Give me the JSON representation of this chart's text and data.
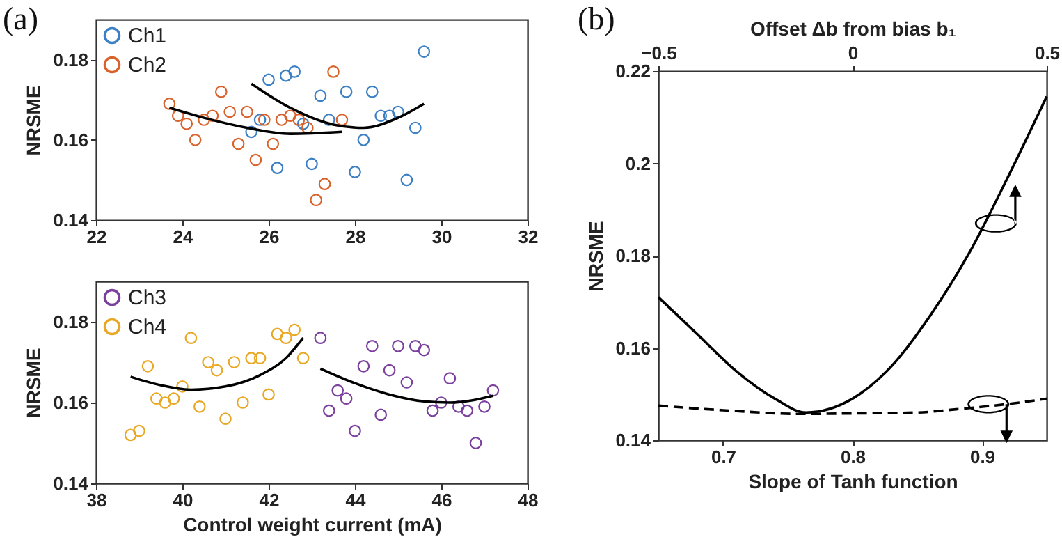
{
  "chart_data": [
    {
      "type": "scatter",
      "title": "(a)",
      "ylabel": "NRSME",
      "xlim": [
        22,
        32
      ],
      "xticks": [
        22,
        24,
        26,
        28,
        30,
        32
      ],
      "ylim": [
        0.14,
        0.19
      ],
      "yticks": [
        0.14,
        0.16,
        0.18
      ],
      "legend": "top left",
      "marker": "circle",
      "grid": false,
      "series": [
        {
          "name": "Ch1",
          "color": "#3b7fc4",
          "x": [
            25.6,
            25.8,
            26.0,
            26.2,
            26.4,
            26.6,
            26.8,
            27.0,
            27.2,
            27.4,
            27.8,
            28.0,
            28.2,
            28.4,
            28.6,
            28.8,
            29.0,
            29.2,
            29.4,
            29.6
          ],
          "values": [
            0.162,
            0.165,
            0.175,
            0.153,
            0.176,
            0.177,
            0.164,
            0.154,
            0.171,
            0.165,
            0.172,
            0.152,
            0.16,
            0.172,
            0.166,
            0.166,
            0.167,
            0.15,
            0.163,
            0.182
          ]
        },
        {
          "name": "Ch2",
          "color": "#d9622b",
          "x": [
            23.7,
            23.9,
            24.1,
            24.3,
            24.5,
            24.7,
            24.9,
            25.1,
            25.3,
            25.5,
            25.7,
            25.9,
            26.1,
            26.3,
            26.5,
            26.7,
            26.9,
            27.1,
            27.3,
            27.5,
            27.7
          ],
          "values": [
            0.169,
            0.166,
            0.164,
            0.16,
            0.165,
            0.166,
            0.172,
            0.167,
            0.159,
            0.167,
            0.155,
            0.165,
            0.159,
            0.165,
            0.166,
            0.165,
            0.163,
            0.145,
            0.149,
            0.177,
            0.165
          ]
        },
        {
          "type": "line",
          "marker": "none",
          "color": "#000000",
          "x": [
            23.7,
            24.5,
            25.5,
            26.5,
            27.7
          ],
          "values": [
            0.168,
            0.1655,
            0.163,
            0.1615,
            0.162
          ]
        },
        {
          "type": "line",
          "marker": "none",
          "color": "#000000",
          "x": [
            25.6,
            26.5,
            27.5,
            28.2,
            29.0,
            29.6
          ],
          "values": [
            0.174,
            0.168,
            0.1638,
            0.163,
            0.1655,
            0.169
          ]
        }
      ]
    },
    {
      "type": "scatter",
      "xlabel": "Control weight current (mA)",
      "ylabel": "NRSME",
      "xlim": [
        38,
        48
      ],
      "xticks": [
        38,
        40,
        42,
        44,
        46,
        48
      ],
      "ylim": [
        0.14,
        0.19
      ],
      "yticks": [
        0.14,
        0.16,
        0.18
      ],
      "legend": "top left",
      "marker": "circle",
      "grid": false,
      "series": [
        {
          "name": "Ch3",
          "color": "#7b3f9e",
          "x": [
            43.2,
            43.4,
            43.6,
            43.8,
            44.0,
            44.2,
            44.4,
            44.6,
            44.8,
            45.0,
            45.2,
            45.4,
            45.6,
            45.8,
            46.0,
            46.2,
            46.4,
            46.6,
            46.8,
            47.0,
            47.2
          ],
          "values": [
            0.176,
            0.158,
            0.163,
            0.161,
            0.153,
            0.169,
            0.174,
            0.157,
            0.168,
            0.174,
            0.165,
            0.174,
            0.173,
            0.158,
            0.16,
            0.166,
            0.159,
            0.158,
            0.15,
            0.159,
            0.163
          ]
        },
        {
          "name": "Ch4",
          "color": "#e8a823",
          "x": [
            38.8,
            39.0,
            39.2,
            39.4,
            39.6,
            39.8,
            40.0,
            40.2,
            40.4,
            40.6,
            40.8,
            41.0,
            41.2,
            41.4,
            41.6,
            41.8,
            42.0,
            42.2,
            42.4,
            42.6,
            42.8
          ],
          "values": [
            0.152,
            0.153,
            0.169,
            0.161,
            0.16,
            0.161,
            0.164,
            0.176,
            0.159,
            0.17,
            0.168,
            0.156,
            0.17,
            0.16,
            0.171,
            0.171,
            0.162,
            0.177,
            0.176,
            0.178,
            0.171
          ]
        },
        {
          "type": "line",
          "marker": "none",
          "color": "#000000",
          "x": [
            38.8,
            39.5,
            40.2,
            41.0,
            41.8,
            42.4,
            42.8
          ],
          "values": [
            0.1664,
            0.1643,
            0.1632,
            0.164,
            0.1668,
            0.171,
            0.176
          ]
        },
        {
          "type": "line",
          "marker": "none",
          "color": "#000000",
          "x": [
            43.2,
            44.0,
            44.8,
            45.6,
            46.2,
            47.2
          ],
          "values": [
            0.1684,
            0.1648,
            0.162,
            0.1603,
            0.16,
            0.1617
          ]
        }
      ]
    },
    {
      "type": "line",
      "title": "(b)",
      "xlabel": "Slope of Tanh function",
      "x2label": "Offset Δb from bias b₁",
      "ylabel": "NRSME",
      "xlim": [
        0.65,
        0.95
      ],
      "xticks": [
        0.7,
        0.8,
        0.9
      ],
      "x2lim": [
        -0.5,
        0.5
      ],
      "x2ticks": [
        -0.5,
        0,
        0.5
      ],
      "ylim": [
        0.14,
        0.22
      ],
      "yticks": [
        0.14,
        0.16,
        0.18,
        0.2,
        0.22
      ],
      "grid": false,
      "series": [
        {
          "axis": "x2",
          "color": "#000000",
          "line_style": "solid",
          "x": [
            -0.5,
            -0.4,
            -0.3,
            -0.2,
            -0.12,
            0,
            0.1,
            0.2,
            0.3,
            0.4,
            0.5
          ],
          "values": [
            0.171,
            0.163,
            0.155,
            0.149,
            0.146,
            0.149,
            0.156,
            0.167,
            0.1805,
            0.197,
            0.2145
          ]
        },
        {
          "color": "#000000",
          "line_style": "dashed",
          "x": [
            0.65,
            0.7,
            0.76,
            0.8,
            0.85,
            0.88,
            0.93,
            0.95
          ],
          "values": [
            0.1475,
            0.1465,
            0.1457,
            0.1458,
            0.146,
            0.1467,
            0.1482,
            0.149
          ]
        }
      ]
    }
  ]
}
